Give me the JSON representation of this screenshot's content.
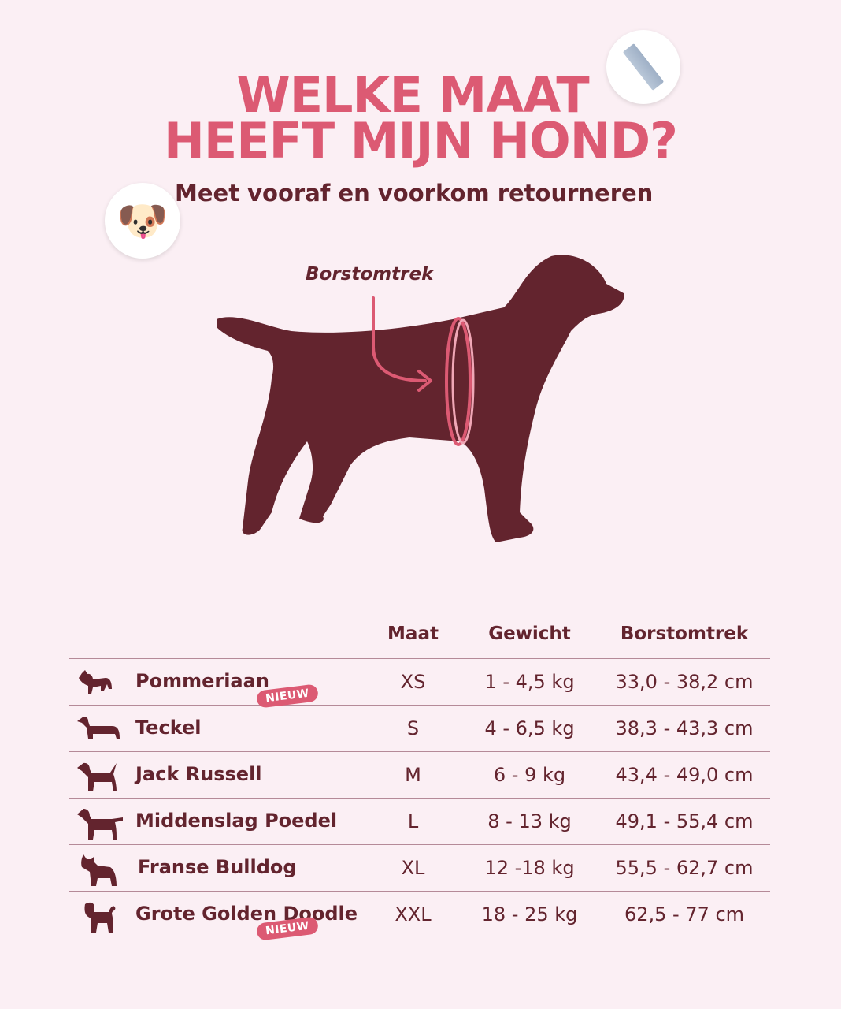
{
  "header": {
    "title_line1": "WELKE MAAT",
    "title_line2": "HEEFT MIJN HOND?",
    "subtitle": "Meet vooraf en voorkom retourneren",
    "emoji_dog": "🐶",
    "icons": [
      "ruler-icon",
      "dog-face-emoji"
    ]
  },
  "illustration": {
    "label": "Borstomtrek"
  },
  "colors": {
    "background": "#fbeff4",
    "accent": "#dc5a73",
    "dark": "#63242e"
  },
  "table": {
    "headers": [
      "",
      "Maat",
      "Gewicht",
      "Borstomtrek"
    ],
    "badge": "NIEUW",
    "rows": [
      {
        "breed": "Pommeriaan",
        "size": "XS",
        "weight": "1 - 4,5 kg",
        "chest": "33,0 - 38,2 cm",
        "badge": "NIEUW"
      },
      {
        "breed": "Teckel",
        "size": "S",
        "weight": "4 - 6,5 kg",
        "chest": "38,3 - 43,3 cm"
      },
      {
        "breed": "Jack Russell",
        "size": "M",
        "weight": "6 - 9 kg",
        "chest": "43,4 - 49,0 cm"
      },
      {
        "breed": "Middenslag Poedel",
        "size": "L",
        "weight": "8 - 13 kg",
        "chest": "49,1 - 55,4 cm"
      },
      {
        "breed": "Franse Bulldog",
        "size": "XL",
        "weight": "12 -18 kg",
        "chest": "55,5 - 62,7 cm"
      },
      {
        "breed": "Grote Golden Doodle",
        "size": "XXL",
        "weight": "18 - 25 kg",
        "chest": "62,5 - 77 cm",
        "badge": "NIEUW"
      }
    ]
  }
}
